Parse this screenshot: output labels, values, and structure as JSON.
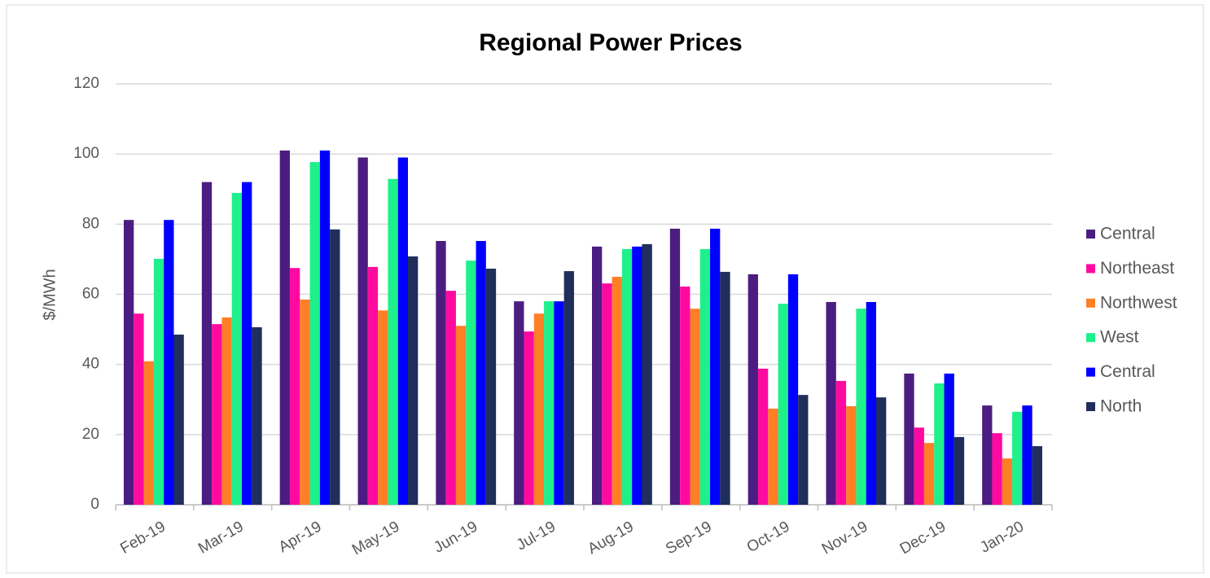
{
  "chart_data": {
    "type": "bar",
    "title": "Regional Power Prices",
    "y_label": "$/MWh",
    "categories": [
      "Feb-19",
      "Mar-19",
      "Apr-19",
      "May-19",
      "Jun-19",
      "Jul-19",
      "Aug-19",
      "Sep-19",
      "Oct-19",
      "Nov-19",
      "Dec-19",
      "Jan-20"
    ],
    "series": [
      {
        "name": "Central",
        "color": "#4b1d80",
        "values": [
          81.2,
          92,
          101,
          99,
          75.2,
          58,
          73.6,
          78.7,
          65.7,
          57.8,
          37.4,
          28.3
        ]
      },
      {
        "name": "Northeast",
        "color": "#ff0aa0",
        "values": [
          54.5,
          51.5,
          67.5,
          67.8,
          61,
          49.4,
          63.1,
          62.2,
          38.8,
          35.3,
          22,
          20.4
        ]
      },
      {
        "name": "Northwest",
        "color": "#ff7f27",
        "values": [
          40.9,
          53.4,
          58.5,
          55.4,
          51,
          54.5,
          65,
          55.9,
          27.4,
          28.1,
          17.6,
          13.2
        ]
      },
      {
        "name": "West",
        "color": "#1ef08c",
        "values": [
          70.1,
          88.9,
          97.7,
          92.9,
          69.6,
          58,
          72.9,
          72.9,
          57.3,
          55.9,
          34.6,
          26.5
        ]
      },
      {
        "name": "Central",
        "color": "#0000ff",
        "values": [
          81.2,
          92,
          101,
          99,
          75.2,
          58,
          73.6,
          78.7,
          65.7,
          57.8,
          37.4,
          28.3
        ]
      },
      {
        "name": "North",
        "color": "#1f2e5a",
        "values": [
          48.5,
          50.6,
          78.5,
          70.8,
          67.3,
          66.6,
          74.3,
          66.4,
          31.3,
          30.6,
          19.3,
          16.7
        ]
      }
    ],
    "ylim": [
      0,
      120
    ],
    "yticks": [
      0,
      20,
      40,
      60,
      80,
      100,
      120
    ],
    "grid": true,
    "legend": "right"
  }
}
